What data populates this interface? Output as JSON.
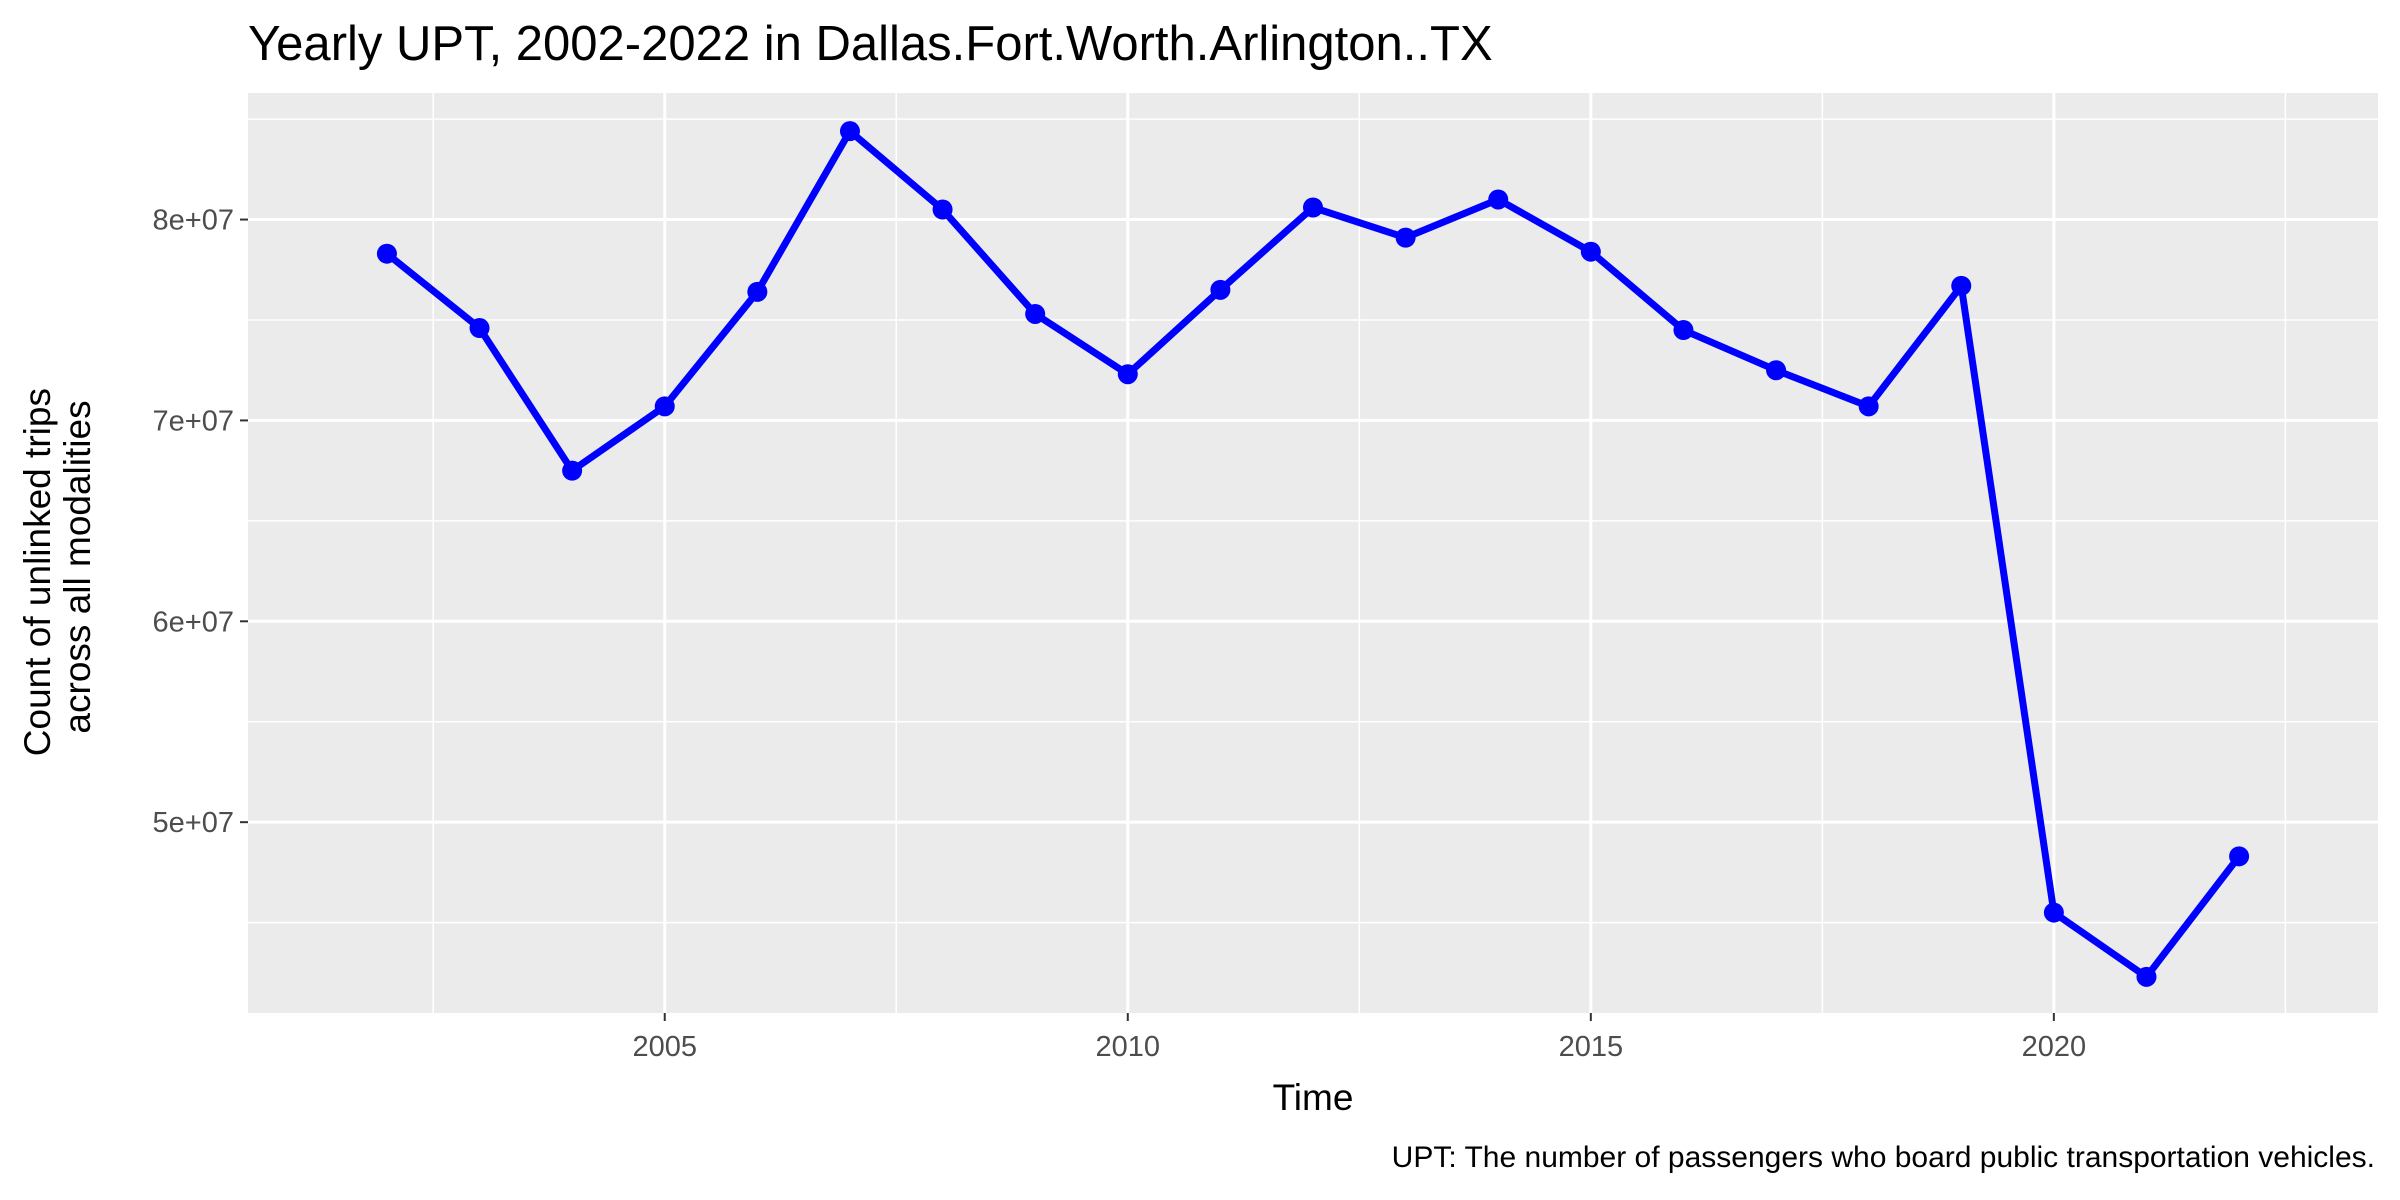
{
  "chart_data": {
    "type": "line",
    "title": "Yearly UPT, 2002-2022 in Dallas.Fort.Worth.Arlington..TX",
    "xlabel": "Time",
    "ylabel": [
      "Count of unlinked trips",
      "across all modalities"
    ],
    "caption": "UPT: The number of passengers who board public transportation vehicles.",
    "x": [
      2002,
      2003,
      2004,
      2005,
      2006,
      2007,
      2008,
      2009,
      2010,
      2011,
      2012,
      2013,
      2014,
      2015,
      2016,
      2017,
      2018,
      2019,
      2020,
      2021,
      2022
    ],
    "series": [
      {
        "values": [
          78300000,
          74600000,
          67500000,
          70700000,
          76400000,
          84400000,
          80500000,
          75300000,
          72300000,
          76500000,
          80600000,
          79100000,
          81000000,
          78400000,
          74500000,
          72500000,
          70700000,
          76700000,
          45500000,
          42300000,
          48300000
        ],
        "color": "#0000ff"
      }
    ],
    "x_ticks": [
      2005,
      2010,
      2015,
      2020
    ],
    "x_tick_labels": [
      "2005",
      "2010",
      "2015",
      "2020"
    ],
    "y_ticks": [
      50000000,
      60000000,
      70000000,
      80000000
    ],
    "y_tick_labels": [
      "5e+07",
      "6e+07",
      "7e+07",
      "8e+07"
    ],
    "xlim": [
      2000.5,
      2023.5
    ],
    "ylim": [
      40500000,
      86300000
    ],
    "grid": true,
    "panel_color": "#ebebeb"
  }
}
